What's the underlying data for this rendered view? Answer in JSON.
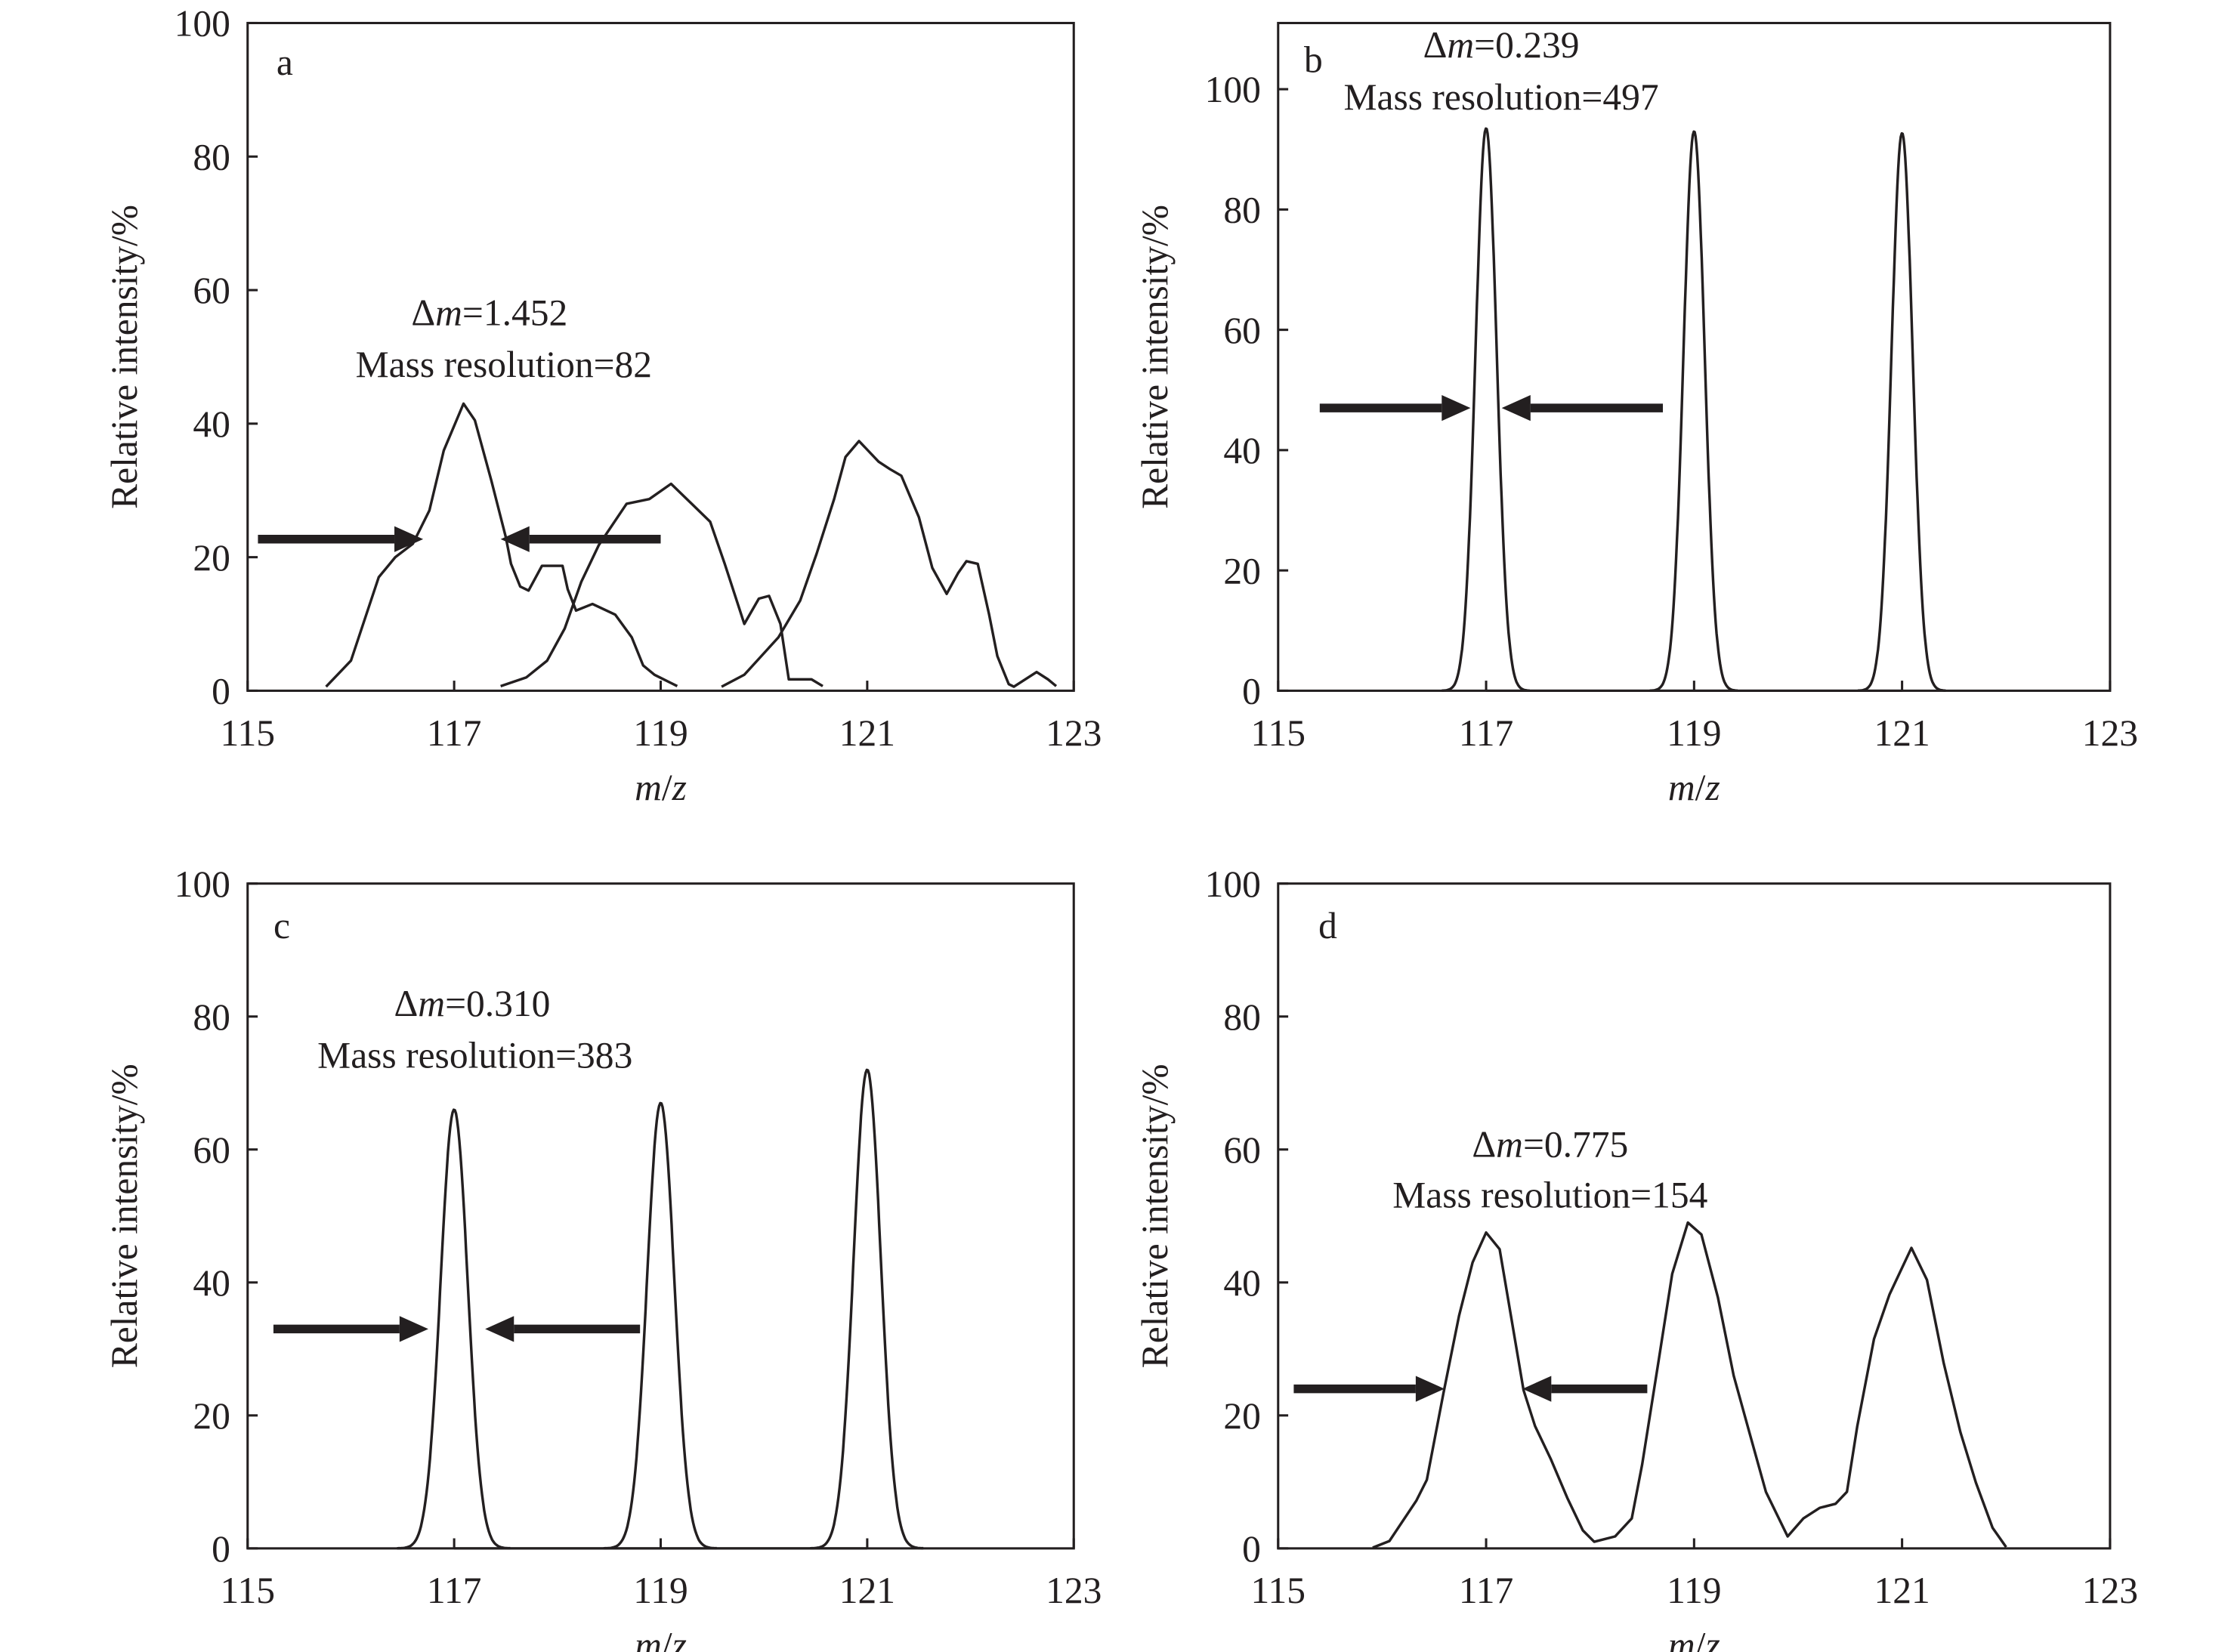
{
  "chart_data": [
    {
      "type": "line",
      "panel": "a",
      "xlabel_var": "m",
      "xlabel_sep": "/",
      "xlabel_var2": "z",
      "ylabel": "Relative intensity/%",
      "xlim": [
        115,
        123
      ],
      "ylim": [
        0,
        100
      ],
      "xticks": [
        115,
        117,
        119,
        121,
        123
      ],
      "yticks": [
        0,
        20,
        40,
        60,
        80,
        100
      ],
      "annotation": {
        "delta": "Δ",
        "var": "m",
        "value": "=1.452",
        "resolution": "Mass resolution=82"
      },
      "fwhm_arrow_y": 22.7,
      "arrows": [
        {
          "from": 115.1,
          "to": 116.7
        },
        {
          "from": 119.0,
          "to": 117.45
        }
      ],
      "series": [
        {
          "name": "peak-117",
          "points": [
            [
              115.76,
              0.6
            ],
            [
              116.0,
              4.5
            ],
            [
              116.27,
              17
            ],
            [
              116.43,
              20
            ],
            [
              116.6,
              22
            ],
            [
              116.76,
              27
            ],
            [
              116.9,
              36
            ],
            [
              117.09,
              43
            ],
            [
              117.2,
              40.5
            ],
            [
              117.36,
              31.5
            ],
            [
              117.5,
              23
            ],
            [
              117.55,
              19
            ],
            [
              117.64,
              15.6
            ],
            [
              117.72,
              15
            ],
            [
              117.85,
              18.7
            ],
            [
              118.05,
              18.7
            ],
            [
              118.1,
              15.2
            ],
            [
              118.18,
              12
            ],
            [
              118.34,
              13
            ],
            [
              118.56,
              11.4
            ],
            [
              118.72,
              8
            ],
            [
              118.83,
              3.8
            ],
            [
              118.94,
              2.4
            ],
            [
              119.16,
              0.7
            ]
          ]
        },
        {
          "name": "peak-119",
          "points": [
            [
              117.45,
              0.7
            ],
            [
              117.7,
              2
            ],
            [
              117.9,
              4.5
            ],
            [
              118.07,
              9.3
            ],
            [
              118.23,
              16.3
            ],
            [
              118.4,
              21.8
            ],
            [
              118.67,
              28
            ],
            [
              118.89,
              28.7
            ],
            [
              119.1,
              31
            ],
            [
              119.32,
              27.7
            ],
            [
              119.48,
              25.3
            ],
            [
              119.62,
              19
            ],
            [
              119.81,
              10
            ],
            [
              119.95,
              13.8
            ],
            [
              120.05,
              14.2
            ],
            [
              120.16,
              10
            ],
            [
              120.24,
              1.7
            ],
            [
              120.46,
              1.7
            ],
            [
              120.57,
              0.7
            ]
          ]
        },
        {
          "name": "peak-121",
          "points": [
            [
              119.59,
              0.6
            ],
            [
              119.81,
              2.4
            ],
            [
              120.14,
              8
            ],
            [
              120.35,
              13.5
            ],
            [
              120.51,
              20.5
            ],
            [
              120.68,
              28.7
            ],
            [
              120.79,
              35
            ],
            [
              120.92,
              37.4
            ],
            [
              121.11,
              34.3
            ],
            [
              121.22,
              33.2
            ],
            [
              121.33,
              32.2
            ],
            [
              121.5,
              26
            ],
            [
              121.63,
              18.4
            ],
            [
              121.77,
              14.5
            ],
            [
              121.88,
              17.6
            ],
            [
              121.96,
              19.4
            ],
            [
              122.07,
              19
            ],
            [
              122.18,
              11.4
            ],
            [
              122.26,
              5.2
            ],
            [
              122.37,
              1
            ],
            [
              122.42,
              0.6
            ],
            [
              122.64,
              2.8
            ],
            [
              122.75,
              1.7
            ],
            [
              122.83,
              0.7
            ]
          ]
        }
      ]
    },
    {
      "type": "line",
      "panel": "b",
      "xlabel_var": "m",
      "xlabel_sep": "/",
      "xlabel_var2": "z",
      "ylabel": "Relative intensity/%",
      "xlim": [
        115,
        123
      ],
      "ylim": [
        0,
        111
      ],
      "xticks": [
        115,
        117,
        119,
        121,
        123
      ],
      "yticks": [
        0,
        20,
        40,
        60,
        80,
        100
      ],
      "annotation": {
        "delta": "Δ",
        "var": "m",
        "value": "=0.239",
        "resolution": "Mass resolution=497"
      },
      "fwhm_arrow_y": 47,
      "arrows": [
        {
          "from": 115.4,
          "to": 116.85
        },
        {
          "from": 118.7,
          "to": 117.15
        }
      ],
      "peaks": [
        {
          "center": 117.0,
          "height": 93.5,
          "fwhm": 0.239
        },
        {
          "center": 119.0,
          "height": 93.0,
          "fwhm": 0.239
        },
        {
          "center": 121.0,
          "height": 92.7,
          "fwhm": 0.239
        }
      ]
    },
    {
      "type": "line",
      "panel": "c",
      "xlabel_var": "m",
      "xlabel_sep": "/",
      "xlabel_var2": "z",
      "ylabel": "Relative intensity/%",
      "xlim": [
        115,
        123
      ],
      "ylim": [
        0,
        100
      ],
      "xticks": [
        115,
        117,
        119,
        121,
        123
      ],
      "yticks": [
        0,
        20,
        40,
        60,
        80,
        100
      ],
      "annotation": {
        "delta": "Δ",
        "var": "m",
        "value": "=0.310",
        "resolution": "Mass resolution=383"
      },
      "fwhm_arrow_y": 33,
      "arrows": [
        {
          "from": 115.25,
          "to": 116.75
        },
        {
          "from": 118.8,
          "to": 117.3
        }
      ],
      "peaks": [
        {
          "center": 117.0,
          "height": 66,
          "fwhm": 0.31
        },
        {
          "center": 119.0,
          "height": 67,
          "fwhm": 0.31
        },
        {
          "center": 121.0,
          "height": 72,
          "fwhm": 0.31
        }
      ]
    },
    {
      "type": "line",
      "panel": "d",
      "xlabel_var": "m",
      "xlabel_sep": "/",
      "xlabel_var2": "z",
      "ylabel": "Relative intensity/%",
      "xlim": [
        115,
        123
      ],
      "ylim": [
        0,
        100
      ],
      "xticks": [
        115,
        117,
        119,
        121,
        123
      ],
      "yticks": [
        0,
        20,
        40,
        60,
        80,
        100
      ],
      "annotation": {
        "delta": "Δ",
        "var": "m",
        "value": "=0.775",
        "resolution": "Mass resolution=154"
      },
      "fwhm_arrow_y": 24,
      "arrows": [
        {
          "from": 115.15,
          "to": 116.6
        },
        {
          "from": 118.55,
          "to": 117.35
        }
      ],
      "series": [
        {
          "name": "spectrum",
          "points": [
            [
              115.91,
              0.1
            ],
            [
              116.07,
              1.1
            ],
            [
              116.33,
              7.2
            ],
            [
              116.43,
              10.3
            ],
            [
              116.59,
              23.4
            ],
            [
              116.74,
              35
            ],
            [
              116.87,
              43
            ],
            [
              117.0,
              47.5
            ],
            [
              117.13,
              45
            ],
            [
              117.26,
              33
            ],
            [
              117.36,
              23.8
            ],
            [
              117.47,
              18.4
            ],
            [
              117.62,
              13.5
            ],
            [
              117.78,
              7.6
            ],
            [
              117.93,
              2.7
            ],
            [
              118.04,
              1
            ],
            [
              118.24,
              1.8
            ],
            [
              118.4,
              4.5
            ],
            [
              118.5,
              12.6
            ],
            [
              118.66,
              28.3
            ],
            [
              118.79,
              41.3
            ],
            [
              118.94,
              49
            ],
            [
              119.07,
              47.2
            ],
            [
              119.23,
              37.7
            ],
            [
              119.38,
              26
            ],
            [
              119.54,
              17
            ],
            [
              119.69,
              8.5
            ],
            [
              119.9,
              1.8
            ],
            [
              120.05,
              4.5
            ],
            [
              120.21,
              6.1
            ],
            [
              120.36,
              6.7
            ],
            [
              120.47,
              8.5
            ],
            [
              120.57,
              18.4
            ],
            [
              120.73,
              31.5
            ],
            [
              120.88,
              38.2
            ],
            [
              121.09,
              45.2
            ],
            [
              121.24,
              40.4
            ],
            [
              121.4,
              27.9
            ],
            [
              121.56,
              17.5
            ],
            [
              121.71,
              9.9
            ],
            [
              121.87,
              3.1
            ],
            [
              122.0,
              0.2
            ]
          ]
        }
      ]
    }
  ]
}
